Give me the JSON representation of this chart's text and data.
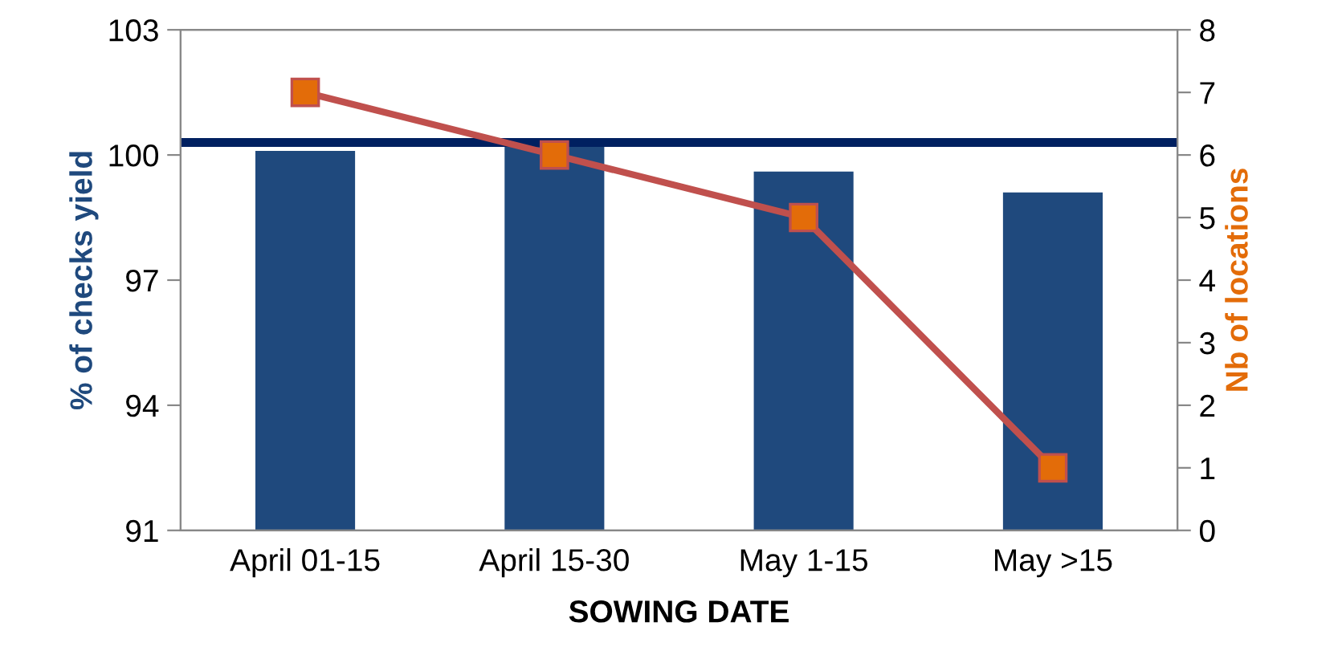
{
  "chart_data": {
    "type": "bar",
    "xlabel": "SOWING DATE",
    "ylabel": "% of checks yield",
    "y2label": "Nb of locations",
    "categories": [
      "April 01-15",
      "April 15-30",
      "May 1-15",
      "May >15"
    ],
    "series": [
      {
        "color": "#1f497d",
        "values": [
          100.1,
          100.3,
          99.6,
          99.1
        ]
      },
      {
        "type": "line",
        "axis": "y2",
        "color": "#c0504d",
        "marker": "square",
        "values": [
          7,
          6,
          5,
          1
        ]
      }
    ],
    "ylim": [
      91,
      103
    ],
    "yticks": [
      91,
      94,
      97,
      100,
      103
    ],
    "y2lim": [
      0,
      8
    ],
    "y2ticks": [
      0,
      1,
      2,
      3,
      4,
      5,
      6,
      7,
      8
    ],
    "ref_lines": [
      {
        "axis": "y",
        "value": 100.3,
        "color": "#002060"
      }
    ],
    "grid": false,
    "legend": false
  }
}
